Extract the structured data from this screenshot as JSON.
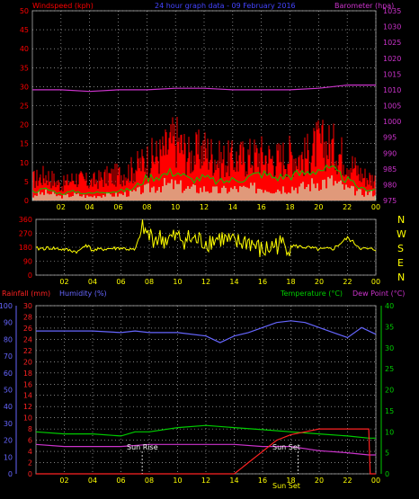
{
  "panel1": {
    "title_left": "Windspeed (kph)",
    "title_center": "24 hour graph data - 09 February 2016",
    "title_right": "Barometer (hpa)"
  },
  "panel2": {
    "compass": [
      "N",
      "W",
      "S",
      "E",
      "N"
    ]
  },
  "panel3": {
    "title_rainfall": "Rainfall (mm)",
    "title_humidity": "Humidity (%)",
    "title_temperature": "Temperature (°C)",
    "title_dewpoint": "Dew Point (°C)",
    "sunrise_label": "Sun Rise",
    "sunset_label": "Sun Set",
    "bottom_label": "Sun Set"
  },
  "colors": {
    "wind": "#ff0000",
    "gust": "#ff0000",
    "avg_wind": "#00cc00",
    "light": "#ccffcc",
    "baro": "#cc33cc",
    "direction": "#ffff00",
    "rain": "#ff2222",
    "humidity": "#6666ff",
    "temperature": "#00cc00",
    "dewpoint": "#cc33cc",
    "grid": "#cccccc",
    "axis_left": "#ff0000",
    "axis_right": "#cc33cc",
    "time_label": "#ffff00"
  },
  "chart_data": [
    {
      "type": "area",
      "panel": "wind",
      "title": "24 hour graph data - 09 February 2016",
      "ylabel": "Windspeed (kph)",
      "ylim": [
        0,
        50
      ],
      "yticks": [
        0,
        5,
        10,
        15,
        20,
        25,
        30,
        35,
        40,
        45,
        50
      ],
      "y2label": "Barometer (hpa)",
      "y2lim": [
        975,
        1035
      ],
      "y2ticks": [
        975,
        980,
        985,
        990,
        995,
        1000,
        1005,
        1010,
        1015,
        1020,
        1025,
        1030,
        1035
      ],
      "xticks": [
        "02",
        "04",
        "06",
        "08",
        "10",
        "12",
        "14",
        "16",
        "18",
        "20",
        "22",
        "00"
      ],
      "series": [
        {
          "x": [
            0,
            1,
            2,
            3,
            4,
            5,
            6,
            7,
            8,
            9,
            10,
            11,
            12,
            13,
            14,
            15,
            16,
            17,
            18,
            19,
            20,
            21,
            22,
            23,
            24
          ],
          "values": [
            4,
            5,
            3,
            4,
            3,
            4,
            4,
            5,
            10,
            11,
            13,
            9,
            10,
            8,
            9,
            10,
            12,
            10,
            11,
            12,
            14,
            13,
            9,
            5,
            5
          ]
        },
        {
          "x": [
            0,
            1,
            2,
            3,
            4,
            5,
            6,
            7,
            8,
            9,
            10,
            11,
            12,
            13,
            14,
            15,
            16,
            17,
            18,
            19,
            20,
            21,
            22,
            23,
            24
          ],
          "values": [
            8,
            10,
            6,
            9,
            7,
            9,
            10,
            12,
            16,
            18,
            24,
            17,
            20,
            16,
            16,
            17,
            18,
            16,
            18,
            17,
            22,
            21,
            16,
            10,
            8
          ]
        },
        {
          "x": [
            0,
            1,
            2,
            3,
            4,
            5,
            6,
            7,
            8,
            9,
            10,
            11,
            12,
            13,
            14,
            15,
            16,
            17,
            18,
            19,
            20,
            21,
            22,
            23,
            24
          ],
          "values": [
            1.5,
            2,
            1,
            1.5,
            1,
            1.5,
            1.5,
            2,
            3,
            4,
            4,
            3,
            3,
            2.5,
            3,
            3,
            3.5,
            3,
            3.5,
            3.5,
            5,
            5,
            3,
            2,
            2
          ]
        },
        {
          "x": [
            0,
            2,
            4,
            6,
            8,
            10,
            12,
            14,
            16,
            18,
            20,
            22,
            23,
            24
          ],
          "values": [
            1010,
            1010,
            1009.5,
            1010,
            1010,
            1010.5,
            1010.5,
            1010,
            1010,
            1010,
            1010.5,
            1011.5,
            1011.5,
            1011.5
          ]
        }
      ]
    },
    {
      "type": "scatter",
      "panel": "direction",
      "ylim": [
        0,
        360
      ],
      "yticks": [
        0,
        90,
        180,
        270,
        360
      ],
      "xticks": [
        "02",
        "04",
        "06",
        "08",
        "10",
        "12",
        "14",
        "16",
        "18",
        "20",
        "22",
        "00"
      ],
      "series": [
        {
          "x": [
            0,
            1,
            2,
            3,
            3.5,
            4,
            5,
            6,
            7,
            7.5,
            8,
            9,
            10,
            11,
            12,
            13,
            14,
            15,
            16,
            17,
            18,
            19,
            20,
            21,
            22,
            23,
            24
          ],
          "values": [
            170,
            175,
            165,
            150,
            200,
            160,
            170,
            175,
            160,
            300,
            250,
            230,
            240,
            230,
            215,
            240,
            200,
            220,
            150,
            200,
            190,
            180,
            165,
            170,
            240,
            170,
            165
          ]
        }
      ]
    },
    {
      "type": "line",
      "panel": "temperature",
      "ylabel": "Rainfall (mm)",
      "ylim": [
        0,
        30
      ],
      "yticks": [
        0,
        2,
        4,
        6,
        8,
        10,
        12,
        14,
        16,
        18,
        20,
        22,
        24,
        26,
        28,
        30
      ],
      "humidity_ticks": [
        0,
        10,
        20,
        30,
        40,
        50,
        60,
        70,
        80,
        90,
        100
      ],
      "y2label": "Temperature (°C)",
      "y2lim": [
        0,
        40
      ],
      "y2ticks": [
        0,
        5,
        10,
        15,
        20,
        25,
        30,
        35,
        40
      ],
      "xticks": [
        "02",
        "04",
        "06",
        "08",
        "10",
        "12",
        "14",
        "16",
        "18",
        "20",
        "22",
        "00"
      ],
      "series": [
        {
          "x": [
            0,
            2,
            4,
            6,
            7,
            8,
            10,
            12,
            13,
            14,
            15,
            16,
            17,
            18,
            19,
            20,
            21,
            22,
            23,
            24
          ],
          "values": [
            85,
            85,
            85,
            84,
            85,
            84,
            84,
            82,
            78,
            82,
            84,
            87,
            90,
            91,
            90,
            87,
            84,
            81,
            87,
            83
          ]
        },
        {
          "x": [
            0,
            2,
            4,
            6,
            7,
            8,
            10,
            12,
            14,
            16,
            18,
            20,
            22,
            23.5,
            24
          ],
          "values": [
            10,
            9.5,
            9.5,
            9,
            10,
            10,
            11,
            11.5,
            11,
            10.5,
            10,
            9.5,
            9,
            8.5,
            8.5
          ]
        },
        {
          "x": [
            0,
            2,
            4,
            6,
            8,
            10,
            12,
            14,
            16,
            18,
            20,
            22,
            23.5,
            24
          ],
          "values": [
            7,
            6.5,
            6.5,
            6.5,
            7,
            7,
            7,
            7,
            6.5,
            6.5,
            5.5,
            5,
            4.5,
            4.5
          ]
        },
        {
          "x": [
            0,
            14,
            14.5,
            15,
            15.5,
            16,
            16.5,
            17,
            18,
            19,
            20,
            21,
            22,
            23.5,
            23.6,
            24
          ],
          "values": [
            0,
            0,
            1,
            2,
            3,
            4,
            5,
            6,
            7,
            7.5,
            8,
            8,
            8,
            8,
            0,
            0
          ]
        }
      ],
      "markers": {
        "sunrise": 7.5,
        "sunset": 18.5
      }
    }
  ]
}
